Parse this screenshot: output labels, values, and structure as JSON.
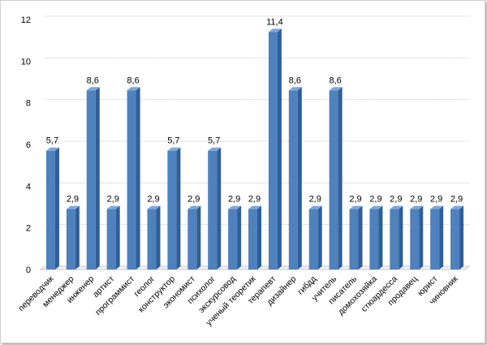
{
  "chart_data": {
    "type": "bar",
    "categories": [
      "переводчик",
      "менеджер",
      "инженер",
      "артист",
      "программист",
      "геолог",
      "конструктор",
      "экономист",
      "психолог",
      "экскурсовод",
      "ученый теоретик",
      "терапевт",
      "дизайнер",
      "гибдд",
      "учитель",
      "писатель",
      "домохозяйка",
      "стюардесса",
      "продавец",
      "юрист",
      "чиновник"
    ],
    "values": [
      5.7,
      2.9,
      8.6,
      2.9,
      8.6,
      2.9,
      5.7,
      2.9,
      5.7,
      2.9,
      2.9,
      11.4,
      8.6,
      2.9,
      8.6,
      2.9,
      2.9,
      2.9,
      2.9,
      2.9,
      2.9
    ],
    "data_labels": [
      "5,7",
      "2,9",
      "8,6",
      "2,9",
      "8,6",
      "2,9",
      "5,7",
      "2,9",
      "5,7",
      "2,9",
      "2,9",
      "11,4",
      "8,6",
      "2,9",
      "8,6",
      "2,9",
      "2,9",
      "2,9",
      "2,9",
      "2,9",
      "2,9"
    ],
    "yticks": [
      "0",
      "2",
      "4",
      "6",
      "8",
      "10",
      "12"
    ],
    "ylim": [
      0,
      12
    ],
    "title": "",
    "xlabel": "",
    "ylabel": "",
    "grid": true,
    "legend": "none",
    "colors": {
      "bar_front": "#4f81bd",
      "bar_side": "#2f5f9a",
      "bar_top": "#7fa6d6",
      "grid": "#c8c8c8"
    }
  }
}
